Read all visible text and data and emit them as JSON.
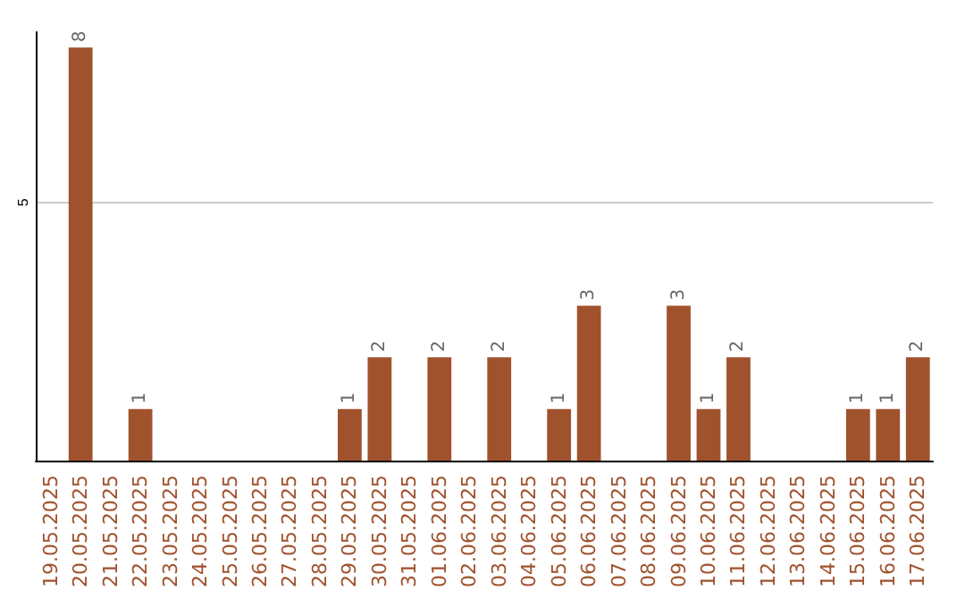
{
  "chart_data": {
    "type": "bar",
    "categories": [
      "19.05.2025",
      "20.05.2025",
      "21.05.2025",
      "22.05.2025",
      "23.05.2025",
      "24.05.2025",
      "25.05.2025",
      "26.05.2025",
      "27.05.2025",
      "28.05.2025",
      "29.05.2025",
      "30.05.2025",
      "31.05.2025",
      "01.06.2025",
      "02.06.2025",
      "03.06.2025",
      "04.06.2025",
      "05.06.2025",
      "06.06.2025",
      "07.06.2025",
      "08.06.2025",
      "09.06.2025",
      "10.06.2025",
      "11.06.2025",
      "12.06.2025",
      "13.06.2025",
      "14.06.2025",
      "15.06.2025",
      "16.06.2025",
      "17.06.2025"
    ],
    "values": [
      0,
      8,
      0,
      1,
      0,
      0,
      0,
      0,
      0,
      0,
      1,
      2,
      0,
      2,
      0,
      2,
      0,
      1,
      3,
      0,
      0,
      3,
      1,
      2,
      0,
      0,
      0,
      1,
      1,
      2
    ],
    "value_labels": [
      null,
      "8",
      null,
      "1",
      null,
      null,
      null,
      null,
      null,
      null,
      "1",
      "2",
      null,
      "2",
      null,
      "2",
      null,
      "1",
      "3",
      null,
      null,
      "3",
      "1",
      "2",
      null,
      null,
      null,
      "1",
      "1",
      "2"
    ],
    "color": "#a0522d",
    "ylim": [
      0,
      8.3
    ],
    "yticks": [
      {
        "value": 0,
        "label": null
      },
      5
    ],
    "grid": "y"
  }
}
